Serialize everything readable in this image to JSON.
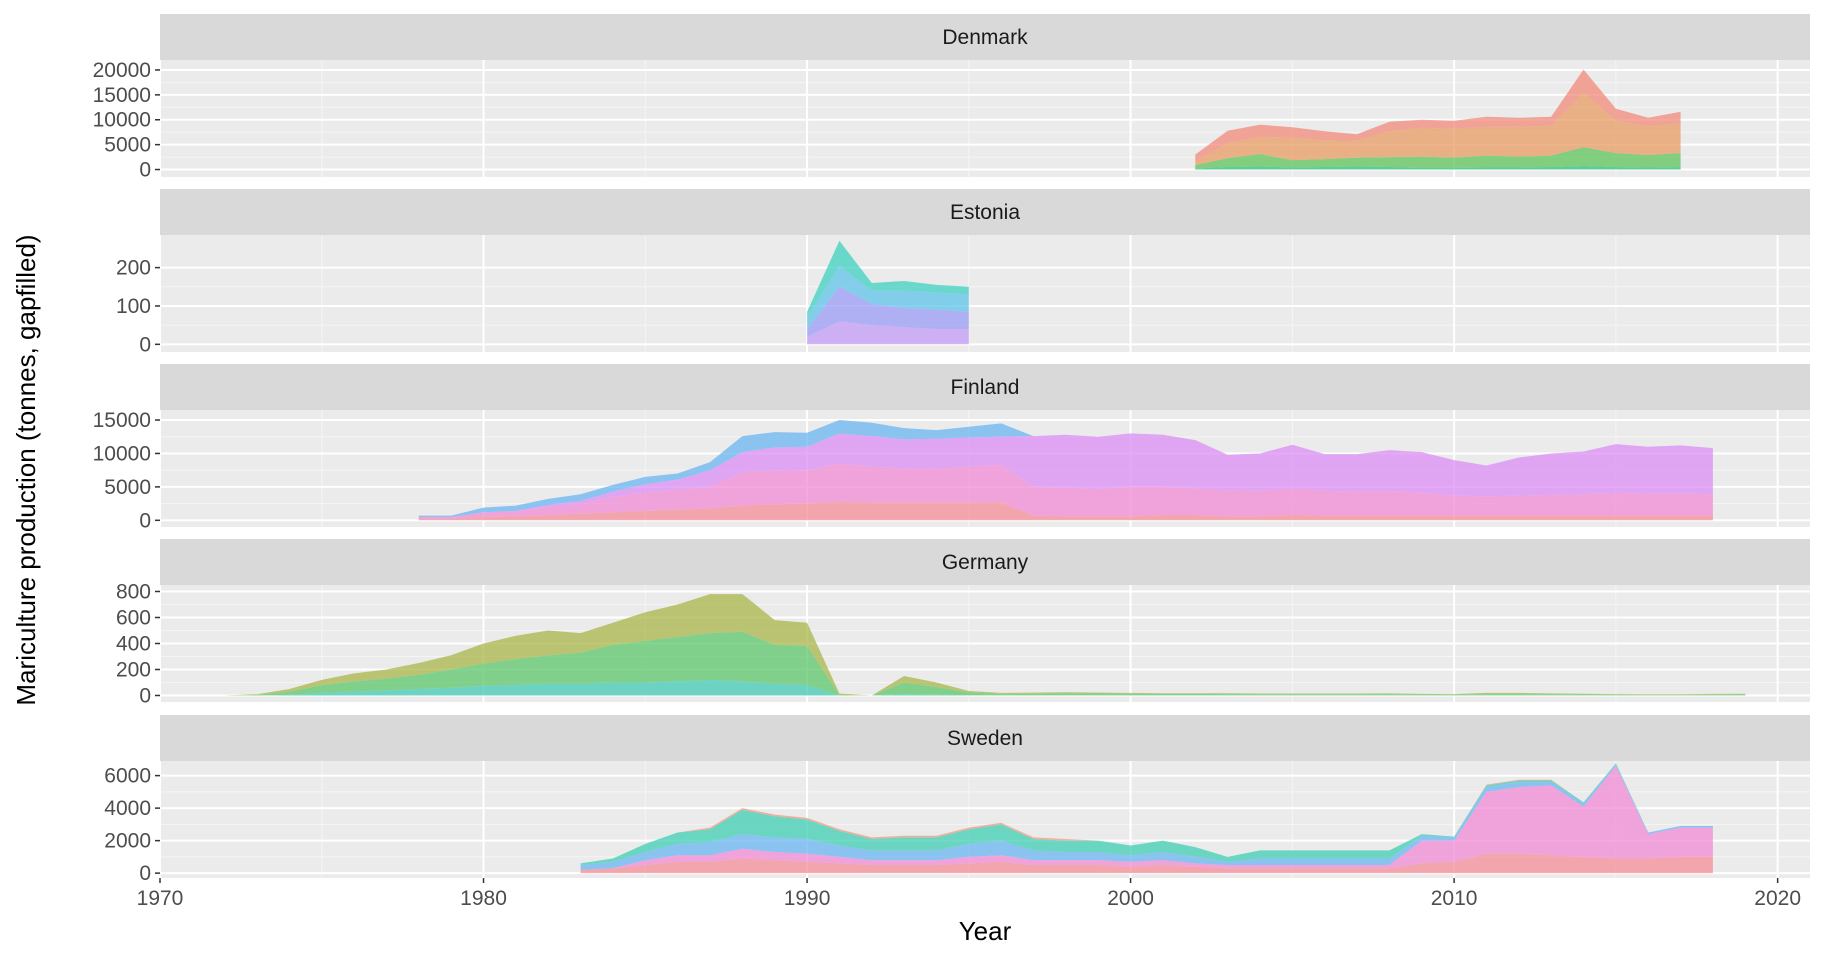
{
  "chart_data": {
    "type": "area",
    "stacked": true,
    "facets_layout": "vertical",
    "xlabel": "Year",
    "ylabel": "Mariculture production (tonnes, gapfilled)",
    "xlim": [
      1970,
      2021
    ],
    "x_ticks": [
      1970,
      1980,
      1990,
      2000,
      2010,
      2020
    ],
    "grid": true,
    "legend": "none",
    "panel_background": "#ebebeb",
    "strip_background": "#d9d9d9",
    "area_alpha": 0.75,
    "panels": [
      {
        "title": "Denmark",
        "ylim": [
          -1500,
          22000
        ],
        "y_ticks": [
          0,
          5000,
          10000,
          15000,
          20000
        ],
        "x": [
          2002,
          2003,
          2004,
          2005,
          2006,
          2007,
          2008,
          2009,
          2010,
          2011,
          2012,
          2013,
          2014,
          2015,
          2016,
          2017
        ],
        "series": [
          {
            "color": "#2ec27e",
            "values": [
              200,
              500,
              600,
              400,
              500,
              600,
              500,
              300,
              300,
              400,
              400,
              500,
              700,
              500,
              400,
              500
            ]
          },
          {
            "color": "#5cc45a",
            "values": [
              700,
              1800,
              2500,
              1500,
              1600,
              1800,
              2000,
              2300,
              2100,
              2400,
              2200,
              2300,
              3800,
              2800,
              2500,
              2800
            ]
          },
          {
            "color": "#e89b63",
            "values": [
              800,
              3000,
              3500,
              4500,
              3800,
              3400,
              5200,
              5800,
              5800,
              5800,
              6000,
              6000,
              11000,
              6500,
              5800,
              6000
            ]
          },
          {
            "color": "#f08a78",
            "values": [
              1300,
              2500,
              2400,
              2100,
              1800,
              1300,
              1900,
              1600,
              1600,
              2000,
              1800,
              1800,
              4600,
              2400,
              1700,
              2300
            ]
          }
        ]
      },
      {
        "title": "Estonia",
        "ylim": [
          -20,
          285
        ],
        "y_ticks": [
          0,
          100,
          200
        ],
        "x": [
          1990,
          1991,
          1992,
          1993,
          1994,
          1995
        ],
        "series": [
          {
            "color": "#c39bf5",
            "values": [
              20,
              60,
              50,
              45,
              40,
              40
            ]
          },
          {
            "color": "#9b9bf5",
            "values": [
              20,
              90,
              55,
              50,
              50,
              45
            ]
          },
          {
            "color": "#5fc3e8",
            "values": [
              30,
              55,
              35,
              45,
              45,
              45
            ]
          },
          {
            "color": "#3fd0c0",
            "values": [
              15,
              65,
              20,
              25,
              20,
              20
            ]
          }
        ]
      },
      {
        "title": "Finland",
        "ylim": [
          -1000,
          16500
        ],
        "y_ticks": [
          0,
          5000,
          10000,
          15000
        ],
        "x": [
          1978,
          1979,
          1980,
          1981,
          1982,
          1983,
          1984,
          1985,
          1986,
          1987,
          1988,
          1989,
          1990,
          1991,
          1992,
          1993,
          1994,
          1995,
          1996,
          1997,
          1998,
          1999,
          2000,
          2001,
          2002,
          2003,
          2004,
          2005,
          2006,
          2007,
          2008,
          2009,
          2010,
          2011,
          2012,
          2013,
          2014,
          2015,
          2016,
          2017,
          2018
        ],
        "series": [
          {
            "color": "#f58e9a",
            "values": [
              200,
              200,
              500,
              600,
              800,
              1000,
              1200,
              1400,
              1600,
              1800,
              2200,
              2400,
              2500,
              2800,
              2600,
              2600,
              2600,
              2600,
              2700,
              700,
              600,
              600,
              600,
              800,
              800,
              600,
              600,
              800,
              700,
              700,
              700,
              700,
              700,
              700,
              700,
              700,
              700,
              700,
              700,
              700,
              700
            ]
          },
          {
            "color": "#f28ad6",
            "values": [
              300,
              300,
              700,
              800,
              1200,
              1400,
              2300,
              2800,
              3000,
              3200,
              5000,
              5000,
              5000,
              5700,
              5400,
              5200,
              5100,
              5400,
              5600,
              4300,
              4300,
              4100,
              4400,
              4200,
              4000,
              3900,
              3800,
              4000,
              3700,
              3600,
              3600,
              3500,
              3000,
              2900,
              3000,
              3100,
              3200,
              3400,
              3300,
              3300,
              3200
            ]
          },
          {
            "color": "#db8ef5",
            "values": [
              0,
              0,
              0,
              0,
              300,
              500,
              800,
              1200,
              1500,
              2500,
              3000,
              3500,
              3500,
              4500,
              4600,
              4300,
              4500,
              4400,
              4200,
              7600,
              7900,
              7800,
              8000,
              7800,
              7200,
              5300,
              5600,
              6500,
              5500,
              5600,
              6200,
              6000,
              5300,
              4600,
              5700,
              6200,
              6400,
              7300,
              7000,
              7200,
              6900
            ]
          },
          {
            "color": "#6ab4f2",
            "values": [
              200,
              200,
              700,
              800,
              900,
              1000,
              1000,
              1100,
              900,
              1200,
              2400,
              2300,
              2100,
              2000,
              2000,
              1700,
              1300,
              1600,
              2000,
              0,
              0,
              0,
              0,
              0,
              0,
              0,
              0,
              0,
              0,
              0,
              0,
              0,
              0,
              0,
              0,
              0,
              0,
              0,
              0,
              0,
              0
            ]
          }
        ]
      },
      {
        "title": "Germany",
        "ylim": [
          -50,
          850
        ],
        "y_ticks": [
          0,
          200,
          400,
          600,
          800
        ],
        "x": [
          1972,
          1973,
          1974,
          1975,
          1976,
          1977,
          1978,
          1979,
          1980,
          1981,
          1982,
          1983,
          1984,
          1985,
          1986,
          1987,
          1988,
          1989,
          1990,
          1991,
          1992,
          1993,
          1994,
          1995,
          1996,
          1997,
          1998,
          1999,
          2000,
          2001,
          2002,
          2003,
          2004,
          2005,
          2006,
          2007,
          2008,
          2009,
          2010,
          2011,
          2012,
          2013,
          2014,
          2015,
          2016,
          2017,
          2018,
          2019
        ],
        "series": [
          {
            "color": "#41c9b4",
            "values": [
              0,
              0,
              5,
              20,
              30,
              40,
              50,
              60,
              75,
              80,
              90,
              90,
              100,
              100,
              110,
              120,
              110,
              90,
              80,
              0,
              0,
              10,
              5,
              3,
              2,
              2,
              2,
              2,
              2,
              2,
              2,
              2,
              2,
              2,
              2,
              2,
              2,
              1,
              1,
              2,
              2,
              2,
              1,
              1,
              1,
              1,
              1,
              1
            ]
          },
          {
            "color": "#5cc76c",
            "values": [
              0,
              5,
              25,
              60,
              80,
              90,
              110,
              140,
              170,
              200,
              220,
              240,
              290,
              320,
              340,
              360,
              380,
              300,
              300,
              5,
              0,
              90,
              60,
              20,
              10,
              12,
              15,
              13,
              11,
              10,
              10,
              9,
              8,
              8,
              8,
              8,
              9,
              7,
              6,
              9,
              9,
              8,
              7,
              6,
              5,
              5,
              6,
              7
            ]
          },
          {
            "color": "#a8b548",
            "values": [
              0,
              5,
              20,
              40,
              60,
              70,
              90,
              110,
              155,
              180,
              190,
              150,
              170,
              220,
              250,
              300,
              290,
              190,
              180,
              10,
              0,
              50,
              35,
              12,
              8,
              8,
              8,
              7,
              7,
              6,
              6,
              6,
              5,
              5,
              5,
              5,
              5,
              4,
              4,
              9,
              9,
              6,
              5,
              4,
              4,
              4,
              5,
              6
            ]
          }
        ]
      },
      {
        "title": "Sweden",
        "ylim": [
          -300,
          6900
        ],
        "y_ticks": [
          0,
          2000,
          4000,
          6000
        ],
        "x": [
          1983,
          1984,
          1985,
          1986,
          1987,
          1988,
          1989,
          1990,
          1991,
          1992,
          1993,
          1994,
          1995,
          1996,
          1997,
          1998,
          1999,
          2000,
          2001,
          2002,
          2003,
          2004,
          2005,
          2006,
          2007,
          2008,
          2009,
          2010,
          2011,
          2012,
          2013,
          2014,
          2015,
          2016,
          2017,
          2018
        ],
        "series": [
          {
            "color": "#f58e9a",
            "values": [
              200,
              300,
              500,
              700,
              700,
              900,
              800,
              700,
              600,
              500,
              500,
              500,
              600,
              700,
              500,
              500,
              500,
              400,
              500,
              400,
              300,
              300,
              300,
              300,
              300,
              300,
              600,
              700,
              1200,
              1200,
              1100,
              1000,
              900,
              900,
              1000,
              1000
            ]
          },
          {
            "color": "#f28ad6",
            "values": [
              0,
              0,
              300,
              400,
              400,
              600,
              500,
              500,
              400,
              300,
              300,
              300,
              400,
              400,
              300,
              300,
              300,
              300,
              300,
              200,
              200,
              200,
              200,
              200,
              200,
              200,
              1400,
              1300,
              3800,
              4100,
              4300,
              3100,
              5700,
              1500,
              1800,
              1800
            ]
          },
          {
            "color": "#6ab4f2",
            "values": [
              300,
              400,
              500,
              700,
              800,
              900,
              900,
              900,
              700,
              600,
              600,
              600,
              800,
              900,
              600,
              500,
              500,
              400,
              500,
              400,
              200,
              400,
              400,
              400,
              400,
              400,
              300,
              200,
              300,
              300,
              200,
              200,
              100,
              100,
              100,
              100
            ]
          },
          {
            "color": "#3fcfb4",
            "values": [
              100,
              200,
              500,
              700,
              800,
              1500,
              1300,
              1200,
              900,
              700,
              800,
              800,
              900,
              1000,
              700,
              700,
              700,
              600,
              700,
              600,
              300,
              500,
              500,
              500,
              500,
              500,
              100,
              50,
              100,
              100,
              100,
              50,
              50,
              0,
              0,
              0
            ]
          },
          {
            "color": "#f19a84",
            "values": [
              0,
              0,
              0,
              0,
              100,
              100,
              100,
              100,
              100,
              100,
              100,
              100,
              100,
              100,
              100,
              100,
              0,
              0,
              0,
              0,
              0,
              0,
              0,
              0,
              0,
              0,
              0,
              0,
              50,
              50,
              50,
              0,
              0,
              0,
              0,
              0
            ]
          }
        ]
      }
    ]
  }
}
